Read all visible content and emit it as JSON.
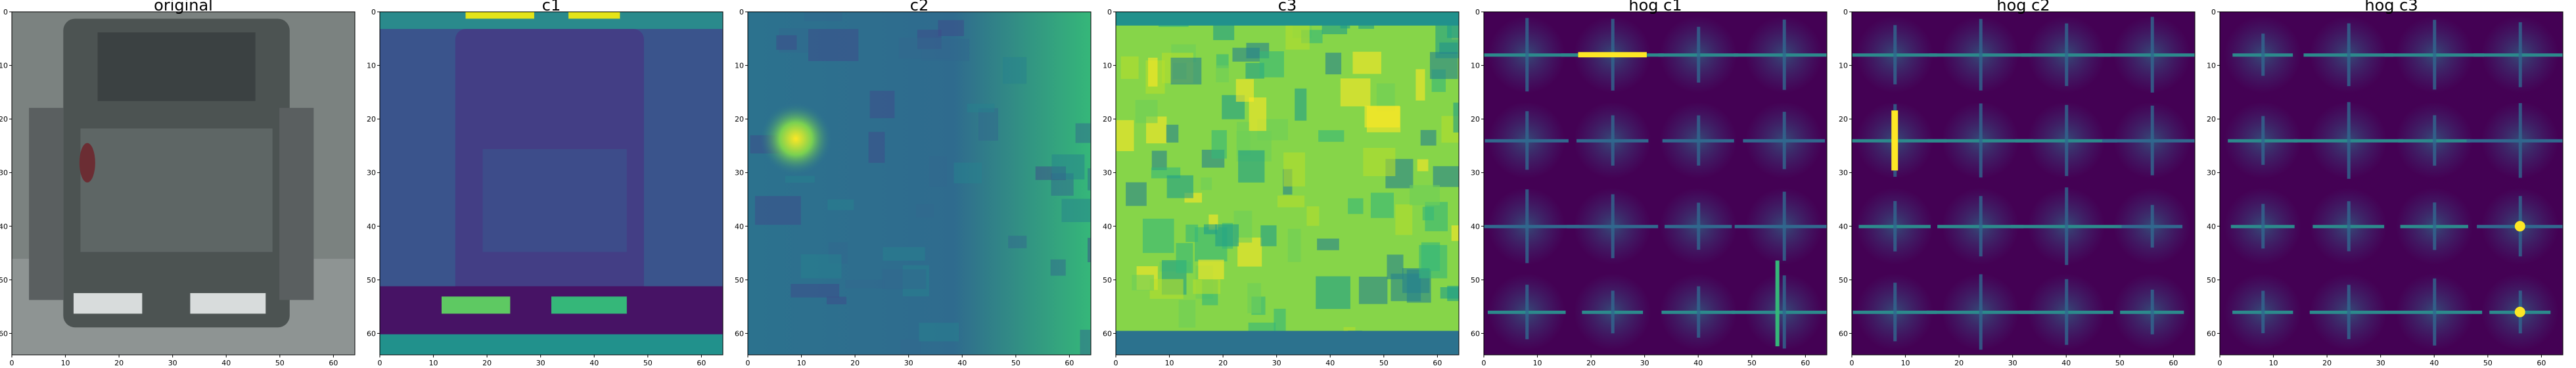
{
  "panels": [
    {
      "title": "original",
      "kind": "photo"
    },
    {
      "title": "c1",
      "kind": "channel1"
    },
    {
      "title": "c2",
      "kind": "channel2"
    },
    {
      "title": "c3",
      "kind": "channel3"
    },
    {
      "title": "hog c1",
      "kind": "hog1"
    },
    {
      "title": "hog c2",
      "kind": "hog2"
    },
    {
      "title": "hog c3",
      "kind": "hog3"
    }
  ],
  "axes": {
    "x_ticks": [
      "0",
      "10",
      "20",
      "30",
      "40",
      "50",
      "60"
    ],
    "y_ticks": [
      "0",
      "10",
      "20",
      "30",
      "40",
      "50",
      "60"
    ],
    "range": [
      0,
      64
    ]
  },
  "colors": {
    "viridis_dark": "#440154",
    "viridis_mid": "#21918c",
    "viridis_bright": "#fde725"
  }
}
